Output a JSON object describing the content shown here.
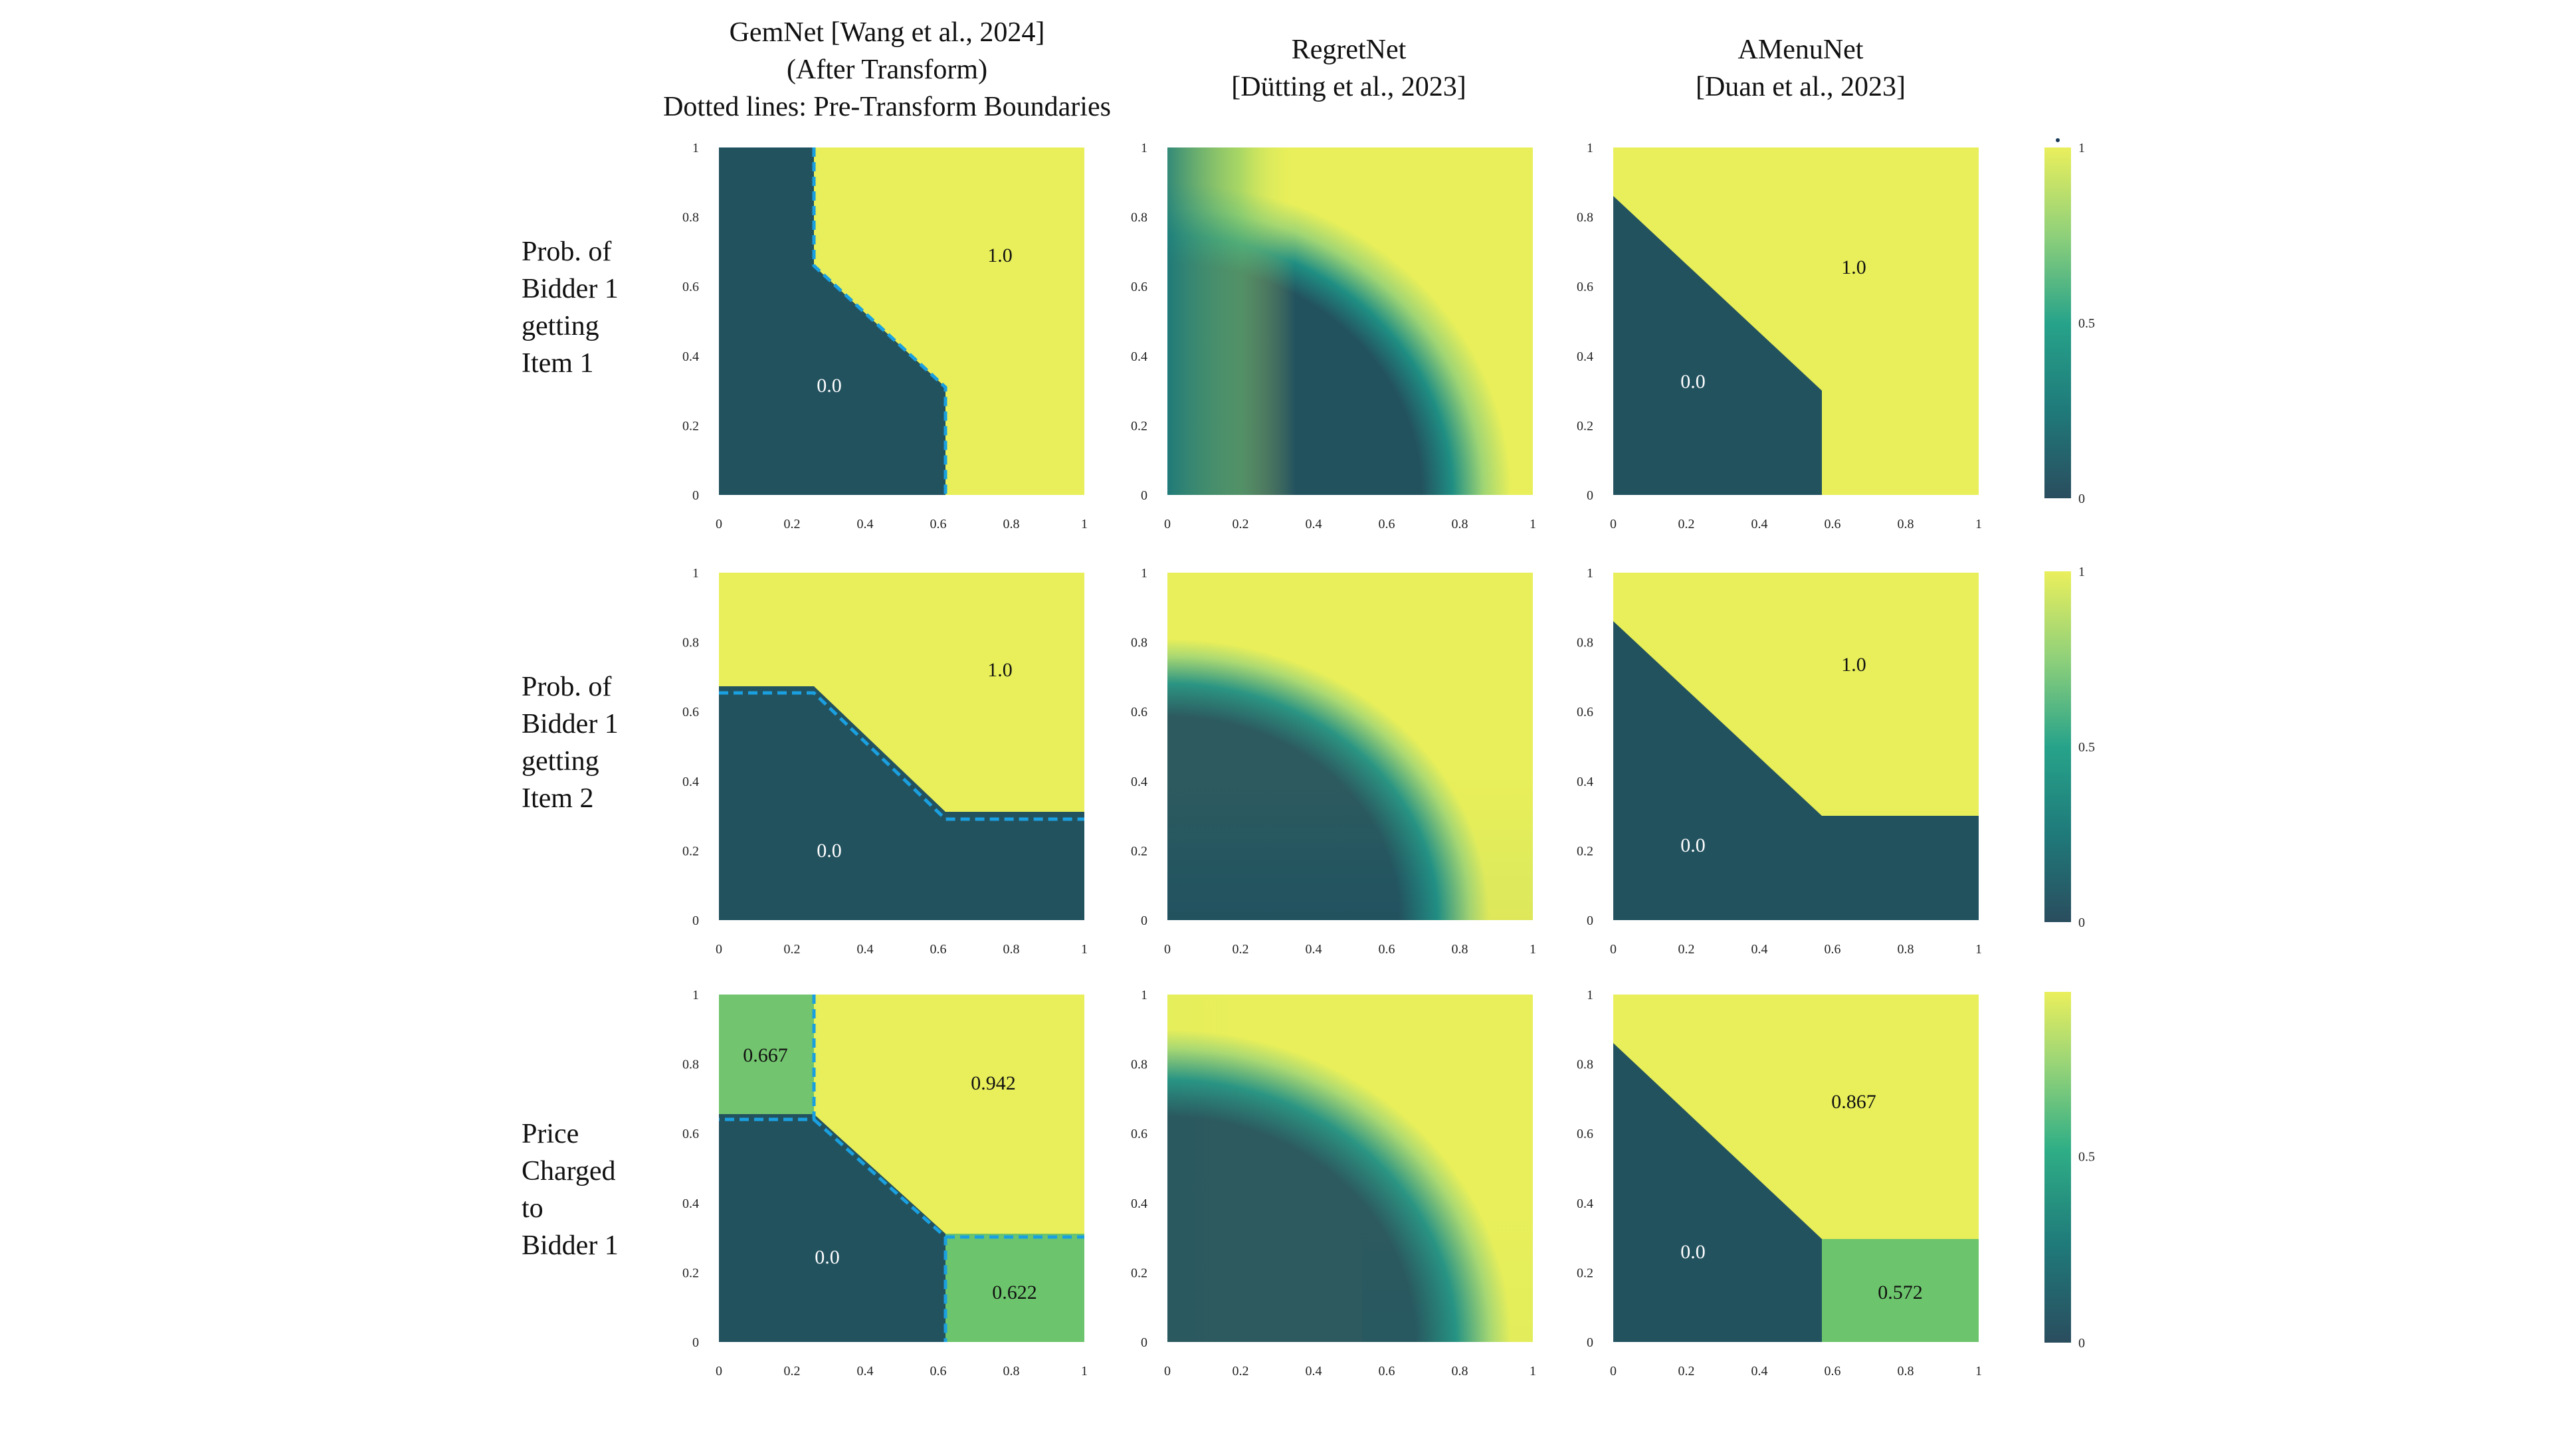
{
  "columns": [
    {
      "title_lines": [
        "GemNet [Wang et al., 2024]",
        "(After Transform)",
        "Dotted lines: Pre-Transform Boundaries"
      ]
    },
    {
      "title_lines": [
        "RegretNet",
        "[Dütting et al., 2023]"
      ]
    },
    {
      "title_lines": [
        "AMenuNet",
        "[Duan et al., 2023]"
      ]
    }
  ],
  "rows": [
    {
      "label_lines": [
        "Prob. of",
        "Bidder 1",
        "getting",
        "Item 1"
      ],
      "colorbar_ticks": [
        "0",
        "0.5",
        "1"
      ],
      "colorbar_max": 1.0
    },
    {
      "label_lines": [
        "Prob. of",
        "Bidder 1",
        "getting",
        "Item 2"
      ],
      "colorbar_ticks": [
        "0",
        "0.5",
        "1"
      ],
      "colorbar_max": 1.0
    },
    {
      "label_lines": [
        "Price",
        "Charged",
        "to",
        "Bidder 1"
      ],
      "colorbar_ticks": [
        "0",
        "0.5"
      ],
      "colorbar_max": 0.942
    }
  ],
  "axis_ticks": [
    "0",
    "0.2",
    "0.4",
    "0.6",
    "0.8",
    "1"
  ],
  "colors": {
    "low": "#23525f",
    "high": "#e8ef5a",
    "mid_green": "#6fc56c",
    "boundary": "#1aa0e0"
  },
  "chart_data": [
    {
      "type": "heatmap",
      "method": "GemNet",
      "quantity": "Prob. of Bidder 1 getting Item 1",
      "xlim": [
        0,
        1
      ],
      "ylim": [
        0,
        1
      ],
      "regions": [
        {
          "label": "0.0",
          "value": 0.0,
          "polygon": [
            [
              0,
              0
            ],
            [
              0,
              1
            ],
            [
              0.26,
              1
            ],
            [
              0.26,
              0.66
            ],
            [
              0.62,
              0.31
            ],
            [
              0.62,
              0
            ]
          ]
        },
        {
          "label": "1.0",
          "value": 1.0
        }
      ],
      "dashed_boundary": [
        [
          0.26,
          1
        ],
        [
          0.26,
          0.66
        ],
        [
          0.62,
          0.31
        ],
        [
          0.62,
          0
        ]
      ]
    },
    {
      "type": "heatmap",
      "method": "RegretNet",
      "quantity": "Prob. of Bidder 1 getting Item 1",
      "xlim": [
        0,
        1
      ],
      "ylim": [
        0,
        1
      ],
      "smooth": true
    },
    {
      "type": "heatmap",
      "method": "AMenuNet",
      "quantity": "Prob. of Bidder 1 getting Item 1",
      "xlim": [
        0,
        1
      ],
      "ylim": [
        0,
        1
      ],
      "regions": [
        {
          "label": "0.0",
          "value": 0.0,
          "polygon": [
            [
              0,
              0
            ],
            [
              0,
              0.86
            ],
            [
              0.57,
              0.3
            ],
            [
              0.57,
              0
            ]
          ]
        },
        {
          "label": "1.0",
          "value": 1.0
        }
      ]
    },
    {
      "type": "heatmap",
      "method": "GemNet",
      "quantity": "Prob. of Bidder 1 getting Item 2",
      "xlim": [
        0,
        1
      ],
      "ylim": [
        0,
        1
      ],
      "regions": [
        {
          "label": "0.0",
          "value": 0.0,
          "polygon": [
            [
              0,
              0
            ],
            [
              0,
              0.66
            ],
            [
              0.26,
              0.66
            ],
            [
              0.62,
              0.31
            ],
            [
              1,
              0.31
            ],
            [
              1,
              0
            ]
          ]
        },
        {
          "label": "1.0",
          "value": 1.0
        }
      ],
      "dashed_boundary": [
        [
          0,
          0.64
        ],
        [
          0.26,
          0.64
        ],
        [
          0.62,
          0.29
        ],
        [
          1,
          0.29
        ]
      ]
    },
    {
      "type": "heatmap",
      "method": "RegretNet",
      "quantity": "Prob. of Bidder 1 getting Item 2",
      "xlim": [
        0,
        1
      ],
      "ylim": [
        0,
        1
      ],
      "smooth": true
    },
    {
      "type": "heatmap",
      "method": "AMenuNet",
      "quantity": "Prob. of Bidder 1 getting Item 2",
      "xlim": [
        0,
        1
      ],
      "ylim": [
        0,
        1
      ],
      "regions": [
        {
          "label": "0.0",
          "value": 0.0,
          "polygon": [
            [
              0,
              0
            ],
            [
              0,
              0.86
            ],
            [
              0.57,
              0.3
            ],
            [
              1,
              0.3
            ],
            [
              1,
              0
            ]
          ]
        },
        {
          "label": "1.0",
          "value": 1.0
        }
      ]
    },
    {
      "type": "heatmap",
      "method": "GemNet",
      "quantity": "Price Charged to Bidder 1",
      "xlim": [
        0,
        1
      ],
      "ylim": [
        0,
        1
      ],
      "regions": [
        {
          "label": "0.667",
          "value": 0.667,
          "polygon": [
            [
              0,
              0.66
            ],
            [
              0,
              1
            ],
            [
              0.26,
              1
            ],
            [
              0.26,
              0.66
            ]
          ]
        },
        {
          "label": "0.942",
          "value": 0.942
        },
        {
          "label": "0.0",
          "value": 0.0,
          "polygon": [
            [
              0,
              0
            ],
            [
              0,
              0.66
            ],
            [
              0.26,
              0.66
            ],
            [
              0.62,
              0.31
            ],
            [
              0.62,
              0
            ]
          ]
        },
        {
          "label": "0.622",
          "value": 0.622,
          "polygon": [
            [
              0.62,
              0
            ],
            [
              0.62,
              0.31
            ],
            [
              1,
              0.31
            ],
            [
              1,
              0
            ]
          ]
        }
      ],
      "dashed_boundary": [
        [
          0.26,
          1
        ],
        [
          0.26,
          0.64
        ],
        [
          0,
          0.64
        ],
        [
          0.26,
          0.64
        ],
        [
          0.62,
          0.31
        ],
        [
          0.62,
          0
        ],
        [
          0.62,
          0.31
        ],
        [
          1,
          0.31
        ]
      ]
    },
    {
      "type": "heatmap",
      "method": "RegretNet",
      "quantity": "Price Charged to Bidder 1",
      "xlim": [
        0,
        1
      ],
      "ylim": [
        0,
        1
      ],
      "smooth": true
    },
    {
      "type": "heatmap",
      "method": "AMenuNet",
      "quantity": "Price Charged to Bidder 1",
      "xlim": [
        0,
        1
      ],
      "ylim": [
        0,
        1
      ],
      "regions": [
        {
          "label": "0.867",
          "value": 0.867
        },
        {
          "label": "0.0",
          "value": 0.0,
          "polygon": [
            [
              0,
              0
            ],
            [
              0,
              0.86
            ],
            [
              0.57,
              0.3
            ],
            [
              0.57,
              0
            ]
          ]
        },
        {
          "label": "0.572",
          "value": 0.572,
          "polygon": [
            [
              0.57,
              0
            ],
            [
              0.57,
              0.3
            ],
            [
              1,
              0.3
            ],
            [
              1,
              0
            ]
          ]
        }
      ]
    }
  ]
}
